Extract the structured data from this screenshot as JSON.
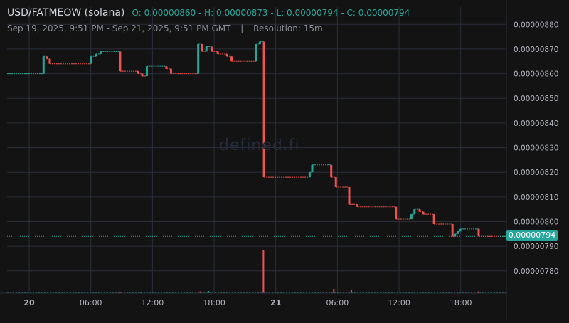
{
  "header": {
    "pair": "USD/FATMEOW (solana)",
    "ohlc": "O: 0.00000860 - H: 0.00000873 - L: 0.00000794 - C: 0.00000794",
    "range": "Sep 19, 2025, 9:51 PM - Sep 21, 2025, 9:51 PM GMT",
    "separator": "|",
    "resolution": "Resolution: 15m"
  },
  "watermark": "defined.fi",
  "last_price_label": "0.00000794",
  "colors": {
    "up": "#26a69a",
    "down": "#ef5350",
    "grid": "#2a2e39",
    "axis_text": "#b2b5be"
  },
  "chart_data": {
    "type": "candlestick",
    "title": "USD/FATMEOW (solana)",
    "resolution": "15m",
    "x_ticks": [
      {
        "label": "20",
        "hours": 2.15
      },
      {
        "label": "06:00",
        "hours": 8.15
      },
      {
        "label": "12:00",
        "hours": 14.15
      },
      {
        "label": "18:00",
        "hours": 20.15
      },
      {
        "label": "21",
        "hours": 26.15
      },
      {
        "label": "06:00",
        "hours": 32.15
      },
      {
        "label": "12:00",
        "hours": 38.15
      },
      {
        "label": "18:00",
        "hours": 44.15
      }
    ],
    "y_ticks": [
      "0.00000780",
      "0.00000790",
      "0.00000800",
      "0.00000810",
      "0.00000820",
      "0.00000830",
      "0.00000840",
      "0.00000850",
      "0.00000860",
      "0.00000870",
      "0.00000880"
    ],
    "ylim": [
      7.71e-06,
      8.87e-06
    ],
    "xlim_hours": [
      0,
      48.6
    ],
    "last_price": 7.94e-06,
    "levels": [
      {
        "t0": 0,
        "t1": 3.55,
        "price": 8.6e-06
      },
      {
        "t0": 3.55,
        "t1": 3.85,
        "price": 8.67e-06
      },
      {
        "t0": 3.85,
        "t1": 4.15,
        "price": 8.66e-06
      },
      {
        "t0": 4.15,
        "t1": 8.15,
        "price": 8.64e-06
      },
      {
        "t0": 8.15,
        "t1": 8.65,
        "price": 8.67e-06
      },
      {
        "t0": 8.65,
        "t1": 9.1,
        "price": 8.68e-06
      },
      {
        "t0": 9.1,
        "t1": 11.0,
        "price": 8.69e-06
      },
      {
        "t0": 11.0,
        "t1": 12.75,
        "price": 8.61e-06
      },
      {
        "t0": 12.75,
        "t1": 13.15,
        "price": 8.6e-06
      },
      {
        "t0": 13.15,
        "t1": 13.6,
        "price": 8.59e-06
      },
      {
        "t0": 13.6,
        "t1": 15.5,
        "price": 8.63e-06
      },
      {
        "t0": 15.5,
        "t1": 15.95,
        "price": 8.62e-06
      },
      {
        "t0": 15.95,
        "t1": 18.6,
        "price": 8.6e-06
      },
      {
        "t0": 18.6,
        "t1": 19.0,
        "price": 8.72e-06
      },
      {
        "t0": 19.0,
        "t1": 19.4,
        "price": 8.69e-06
      },
      {
        "t0": 19.4,
        "t1": 19.9,
        "price": 8.71e-06
      },
      {
        "t0": 19.9,
        "t1": 20.5,
        "price": 8.69e-06
      },
      {
        "t0": 20.5,
        "t1": 21.4,
        "price": 8.68e-06
      },
      {
        "t0": 21.4,
        "t1": 21.85,
        "price": 8.67e-06
      },
      {
        "t0": 21.85,
        "t1": 24.25,
        "price": 8.65e-06
      },
      {
        "t0": 24.25,
        "t1": 24.6,
        "price": 8.72e-06
      },
      {
        "t0": 24.6,
        "t1": 25.0,
        "price": 8.73e-06
      },
      {
        "t0": 25.0,
        "t1": 29.45,
        "price": 8.18e-06
      },
      {
        "t0": 29.45,
        "t1": 29.7,
        "price": 8.2e-06
      },
      {
        "t0": 29.7,
        "t1": 31.55,
        "price": 8.23e-06
      },
      {
        "t0": 31.55,
        "t1": 32.0,
        "price": 8.18e-06
      },
      {
        "t0": 32.0,
        "t1": 33.3,
        "price": 8.14e-06
      },
      {
        "t0": 33.3,
        "t1": 34.1,
        "price": 8.07e-06
      },
      {
        "t0": 34.1,
        "t1": 37.85,
        "price": 8.06e-06
      },
      {
        "t0": 37.85,
        "t1": 39.35,
        "price": 8.01e-06
      },
      {
        "t0": 39.35,
        "t1": 39.65,
        "price": 8.03e-06
      },
      {
        "t0": 39.65,
        "t1": 40.15,
        "price": 8.05e-06
      },
      {
        "t0": 40.15,
        "t1": 40.5,
        "price": 8.04e-06
      },
      {
        "t0": 40.5,
        "t1": 41.55,
        "price": 8.03e-06
      },
      {
        "t0": 41.55,
        "t1": 43.35,
        "price": 7.99e-06
      },
      {
        "t0": 43.35,
        "t1": 43.6,
        "price": 7.94e-06
      },
      {
        "t0": 43.6,
        "t1": 43.85,
        "price": 7.95e-06
      },
      {
        "t0": 43.85,
        "t1": 44.1,
        "price": 7.96e-06
      },
      {
        "t0": 44.1,
        "t1": 45.9,
        "price": 7.97e-06
      },
      {
        "t0": 45.9,
        "t1": 48.6,
        "price": 7.94e-06
      }
    ],
    "volume_spikes": [
      {
        "hours": 24.95,
        "relative": 1.0,
        "color": "down"
      },
      {
        "hours": 31.8,
        "relative": 0.1,
        "color": "down"
      },
      {
        "hours": 33.5,
        "relative": 0.07,
        "color": "down"
      },
      {
        "hours": 19.6,
        "relative": 0.05,
        "color": "up"
      },
      {
        "hours": 18.8,
        "relative": 0.04,
        "color": "down"
      },
      {
        "hours": 45.9,
        "relative": 0.04,
        "color": "down"
      },
      {
        "hours": 11.0,
        "relative": 0.03,
        "color": "down"
      },
      {
        "hours": 13.0,
        "relative": 0.03,
        "color": "up"
      }
    ]
  }
}
